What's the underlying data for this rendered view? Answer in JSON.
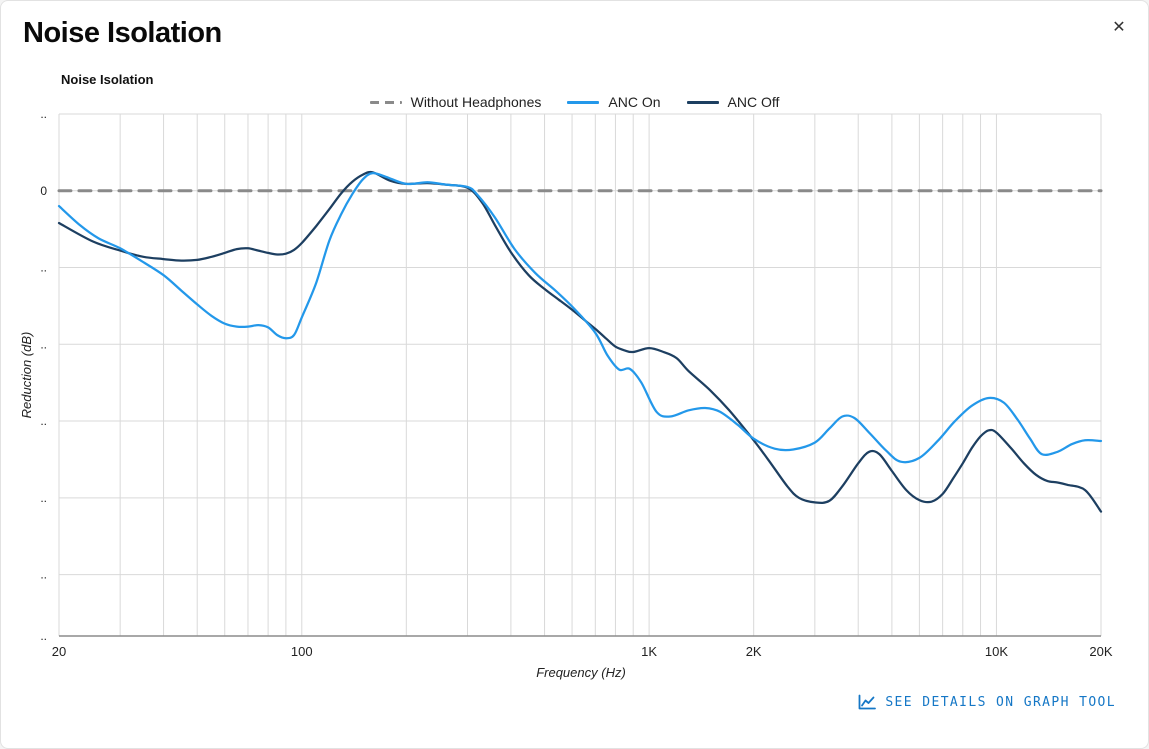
{
  "modal": {
    "title": "Noise Isolation",
    "close_icon": "✕"
  },
  "chart": {
    "subtitle": "Noise Isolation"
  },
  "footer": {
    "link_label": "SEE DETAILS ON GRAPH TOOL"
  },
  "colors": {
    "anc_on": "#2398ea",
    "anc_off": "#1d3f61",
    "without_headphones": "#8a8a8a",
    "link": "#1577c6",
    "grid": "#d9d9d9",
    "axis": "#8c8c8c"
  },
  "chart_data": {
    "type": "line",
    "title": "Noise Isolation",
    "xlabel": "Frequency (Hz)",
    "ylabel": "Reduction (dB)",
    "x_scale": "log",
    "x_range": [
      20,
      20000
    ],
    "y_range": [
      10,
      -58
    ],
    "grid": true,
    "legend_position": "top",
    "x_gridlines": [
      20,
      30,
      40,
      50,
      60,
      70,
      80,
      90,
      100,
      200,
      300,
      400,
      500,
      600,
      700,
      800,
      900,
      1000,
      2000,
      3000,
      4000,
      5000,
      6000,
      7000,
      8000,
      9000,
      10000,
      20000
    ],
    "y_gridlines": [
      10,
      0,
      -10,
      -20,
      -30,
      -40,
      -50
    ],
    "x_ticks": [
      {
        "value": 20,
        "label": "20"
      },
      {
        "value": 100,
        "label": "100"
      },
      {
        "value": 1000,
        "label": "1K"
      },
      {
        "value": 2000,
        "label": "2K"
      },
      {
        "value": 10000,
        "label": "10K"
      },
      {
        "value": 20000,
        "label": "20K"
      }
    ],
    "y_ticks": [
      {
        "value": 10,
        "label": ".."
      },
      {
        "value": 0,
        "label": "0"
      },
      {
        "value": -10,
        "label": ".."
      },
      {
        "value": -20,
        "label": ".."
      },
      {
        "value": -30,
        "label": ".."
      },
      {
        "value": -40,
        "label": ".."
      },
      {
        "value": -50,
        "label": ".."
      },
      {
        "value": -58,
        "label": ".."
      }
    ],
    "legend": [
      {
        "name": "Without Headphones",
        "color": "#8a8a8a",
        "dashed": true
      },
      {
        "name": "ANC On",
        "color": "#2398ea",
        "dashed": false
      },
      {
        "name": "ANC Off",
        "color": "#1d3f61",
        "dashed": false
      }
    ],
    "series": [
      {
        "name": "Without Headphones",
        "color": "#8a8a8a",
        "dashed": true,
        "width": 3,
        "points": [
          [
            20,
            0
          ],
          [
            20000,
            0
          ]
        ]
      },
      {
        "name": "ANC Off",
        "color": "#1d3f61",
        "dashed": false,
        "width": 2.25,
        "points": [
          [
            20,
            -4.2
          ],
          [
            25,
            -6.6
          ],
          [
            30,
            -7.8
          ],
          [
            35,
            -8.6
          ],
          [
            40,
            -8.9
          ],
          [
            45,
            -9.1
          ],
          [
            50,
            -9.0
          ],
          [
            55,
            -8.6
          ],
          [
            60,
            -8.1
          ],
          [
            65,
            -7.6
          ],
          [
            70,
            -7.5
          ],
          [
            75,
            -7.8
          ],
          [
            80,
            -8.1
          ],
          [
            85,
            -8.3
          ],
          [
            90,
            -8.2
          ],
          [
            95,
            -7.7
          ],
          [
            100,
            -6.8
          ],
          [
            110,
            -4.6
          ],
          [
            120,
            -2.4
          ],
          [
            130,
            -0.3
          ],
          [
            140,
            1.2
          ],
          [
            150,
            2.1
          ],
          [
            160,
            2.4
          ],
          [
            180,
            1.3
          ],
          [
            200,
            0.9
          ],
          [
            230,
            1.0
          ],
          [
            260,
            0.8
          ],
          [
            300,
            0.4
          ],
          [
            330,
            -1.5
          ],
          [
            360,
            -4.5
          ],
          [
            400,
            -8.0
          ],
          [
            450,
            -11.0
          ],
          [
            500,
            -12.8
          ],
          [
            550,
            -14.2
          ],
          [
            600,
            -15.5
          ],
          [
            650,
            -16.8
          ],
          [
            700,
            -18.0
          ],
          [
            750,
            -19.2
          ],
          [
            800,
            -20.3
          ],
          [
            850,
            -20.8
          ],
          [
            900,
            -21.0
          ],
          [
            1000,
            -20.5
          ],
          [
            1100,
            -21.0
          ],
          [
            1200,
            -21.8
          ],
          [
            1300,
            -23.5
          ],
          [
            1500,
            -26.0
          ],
          [
            1700,
            -28.6
          ],
          [
            2000,
            -32.5
          ],
          [
            2200,
            -35.0
          ],
          [
            2500,
            -38.5
          ],
          [
            2700,
            -40.0
          ],
          [
            3000,
            -40.6
          ],
          [
            3300,
            -40.4
          ],
          [
            3600,
            -38.5
          ],
          [
            4000,
            -35.5
          ],
          [
            4300,
            -34.0
          ],
          [
            4600,
            -34.3
          ],
          [
            5000,
            -36.5
          ],
          [
            5500,
            -39.0
          ],
          [
            6000,
            -40.3
          ],
          [
            6500,
            -40.5
          ],
          [
            7000,
            -39.5
          ],
          [
            7500,
            -37.5
          ],
          [
            8000,
            -35.5
          ],
          [
            8500,
            -33.5
          ],
          [
            9000,
            -32.0
          ],
          [
            9500,
            -31.2
          ],
          [
            10000,
            -31.5
          ],
          [
            11000,
            -33.5
          ],
          [
            12000,
            -35.5
          ],
          [
            13000,
            -37.0
          ],
          [
            14000,
            -37.8
          ],
          [
            15000,
            -38.0
          ],
          [
            16000,
            -38.3
          ],
          [
            18000,
            -39.0
          ],
          [
            20000,
            -41.8
          ]
        ]
      },
      {
        "name": "ANC On",
        "color": "#2398ea",
        "dashed": false,
        "width": 2.25,
        "points": [
          [
            20,
            -2.0
          ],
          [
            23,
            -4.5
          ],
          [
            26,
            -6.2
          ],
          [
            30,
            -7.5
          ],
          [
            35,
            -9.3
          ],
          [
            40,
            -11.0
          ],
          [
            45,
            -13.0
          ],
          [
            50,
            -14.8
          ],
          [
            55,
            -16.3
          ],
          [
            60,
            -17.3
          ],
          [
            65,
            -17.7
          ],
          [
            70,
            -17.7
          ],
          [
            75,
            -17.5
          ],
          [
            80,
            -17.8
          ],
          [
            85,
            -18.8
          ],
          [
            90,
            -19.2
          ],
          [
            95,
            -18.8
          ],
          [
            100,
            -16.5
          ],
          [
            110,
            -12.0
          ],
          [
            120,
            -6.5
          ],
          [
            130,
            -3.0
          ],
          [
            140,
            -0.4
          ],
          [
            150,
            1.5
          ],
          [
            160,
            2.3
          ],
          [
            175,
            1.8
          ],
          [
            200,
            0.9
          ],
          [
            230,
            1.1
          ],
          [
            260,
            0.8
          ],
          [
            300,
            0.5
          ],
          [
            320,
            -0.5
          ],
          [
            360,
            -3.5
          ],
          [
            410,
            -7.6
          ],
          [
            470,
            -10.7
          ],
          [
            540,
            -13.1
          ],
          [
            610,
            -15.4
          ],
          [
            700,
            -18.5
          ],
          [
            760,
            -21.5
          ],
          [
            820,
            -23.3
          ],
          [
            880,
            -23.2
          ],
          [
            950,
            -25.0
          ],
          [
            1050,
            -28.8
          ],
          [
            1150,
            -29.4
          ],
          [
            1300,
            -28.6
          ],
          [
            1450,
            -28.3
          ],
          [
            1600,
            -28.8
          ],
          [
            1800,
            -30.5
          ],
          [
            2000,
            -32.3
          ],
          [
            2300,
            -33.6
          ],
          [
            2600,
            -33.7
          ],
          [
            3000,
            -32.8
          ],
          [
            3300,
            -31.0
          ],
          [
            3600,
            -29.4
          ],
          [
            3900,
            -29.6
          ],
          [
            4300,
            -31.5
          ],
          [
            4800,
            -33.8
          ],
          [
            5300,
            -35.3
          ],
          [
            6000,
            -34.8
          ],
          [
            6800,
            -32.5
          ],
          [
            7600,
            -30.0
          ],
          [
            8500,
            -28.0
          ],
          [
            9500,
            -27.0
          ],
          [
            10500,
            -27.6
          ],
          [
            11500,
            -29.8
          ],
          [
            12500,
            -32.3
          ],
          [
            13500,
            -34.3
          ],
          [
            15000,
            -34.0
          ],
          [
            16500,
            -33.0
          ],
          [
            18000,
            -32.5
          ],
          [
            20000,
            -32.6
          ]
        ]
      }
    ]
  }
}
